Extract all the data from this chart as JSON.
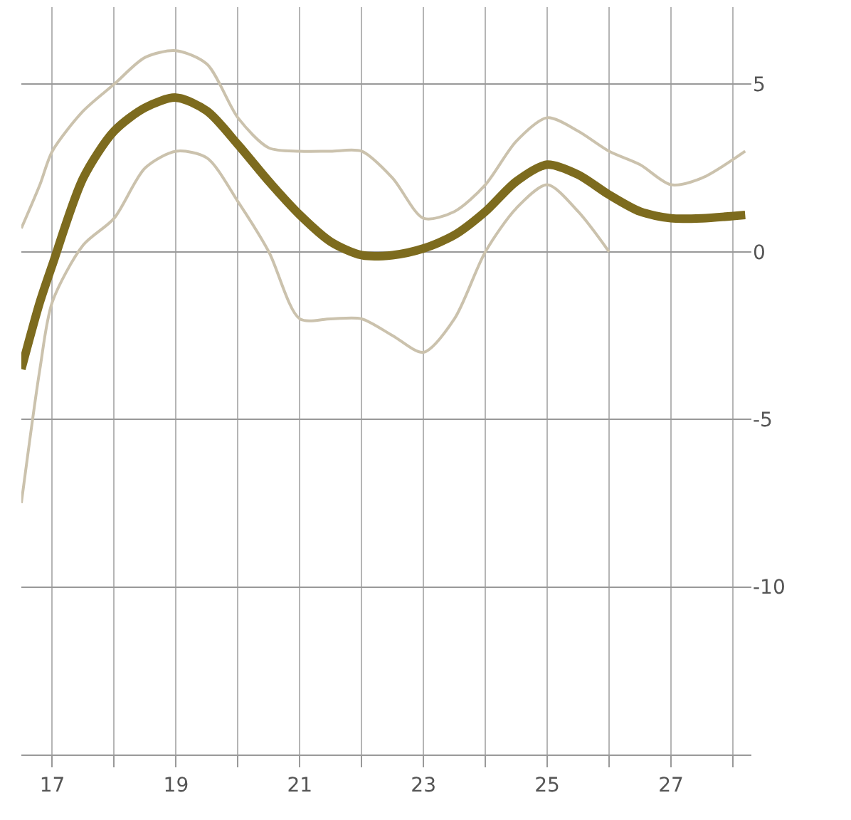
{
  "chart_data": {
    "type": "line",
    "x": [
      16.5,
      16.8,
      17,
      17.5,
      18,
      18.5,
      19,
      19.5,
      20,
      20.5,
      21,
      21.5,
      22,
      22.5,
      23,
      23.5,
      24,
      24.5,
      25,
      25.5,
      26,
      26.5,
      27,
      27.5,
      28.2
    ],
    "series": [
      {
        "color": "#cbc2ad",
        "values": [
          0.7,
          2.0,
          3.0,
          4.2,
          5.0,
          5.8,
          6.0,
          5.6,
          4.0,
          3.1,
          3.0,
          3.0,
          3.0,
          2.2,
          1.0,
          1.2,
          2.0,
          3.3,
          4.0,
          3.6,
          3.0,
          2.6,
          2.0,
          2.2,
          3.0
        ]
      },
      {
        "color": "#cbc2ad",
        "values": [
          -7.5,
          -3.5,
          -1.5,
          0.2,
          1.0,
          2.5,
          3.0,
          2.8,
          1.5,
          0.0,
          -2.0,
          -2.0,
          -2.0,
          -2.5,
          -3.0,
          -2.0,
          0.0,
          1.3,
          2.0,
          1.2,
          0.0,
          null,
          null,
          null,
          null
        ]
      },
      {
        "color": "#7d6b1e",
        "values": [
          -3.5,
          -1.5,
          -0.4,
          2.2,
          3.6,
          4.3,
          4.6,
          4.2,
          3.2,
          2.1,
          1.1,
          0.3,
          -0.1,
          -0.1,
          0.1,
          0.5,
          1.2,
          2.1,
          2.6,
          2.3,
          1.7,
          1.2,
          1.0,
          1.0,
          1.1
        ]
      }
    ],
    "xlim": [
      16.5,
      28.3
    ],
    "xticks": [
      17,
      {
        "value": 18,
        "label": null
      },
      19,
      {
        "value": 20,
        "label": null
      },
      21,
      {
        "value": 22,
        "label": null
      },
      23,
      {
        "value": 24,
        "label": null
      },
      25,
      {
        "value": 26,
        "label": null
      },
      27,
      {
        "value": 28,
        "label": null
      }
    ],
    "ylim": [
      -15,
      7.3
    ],
    "yticks": [
      -10,
      -5,
      0,
      5
    ],
    "grid": true,
    "marker": "none",
    "line_style": "solid"
  }
}
